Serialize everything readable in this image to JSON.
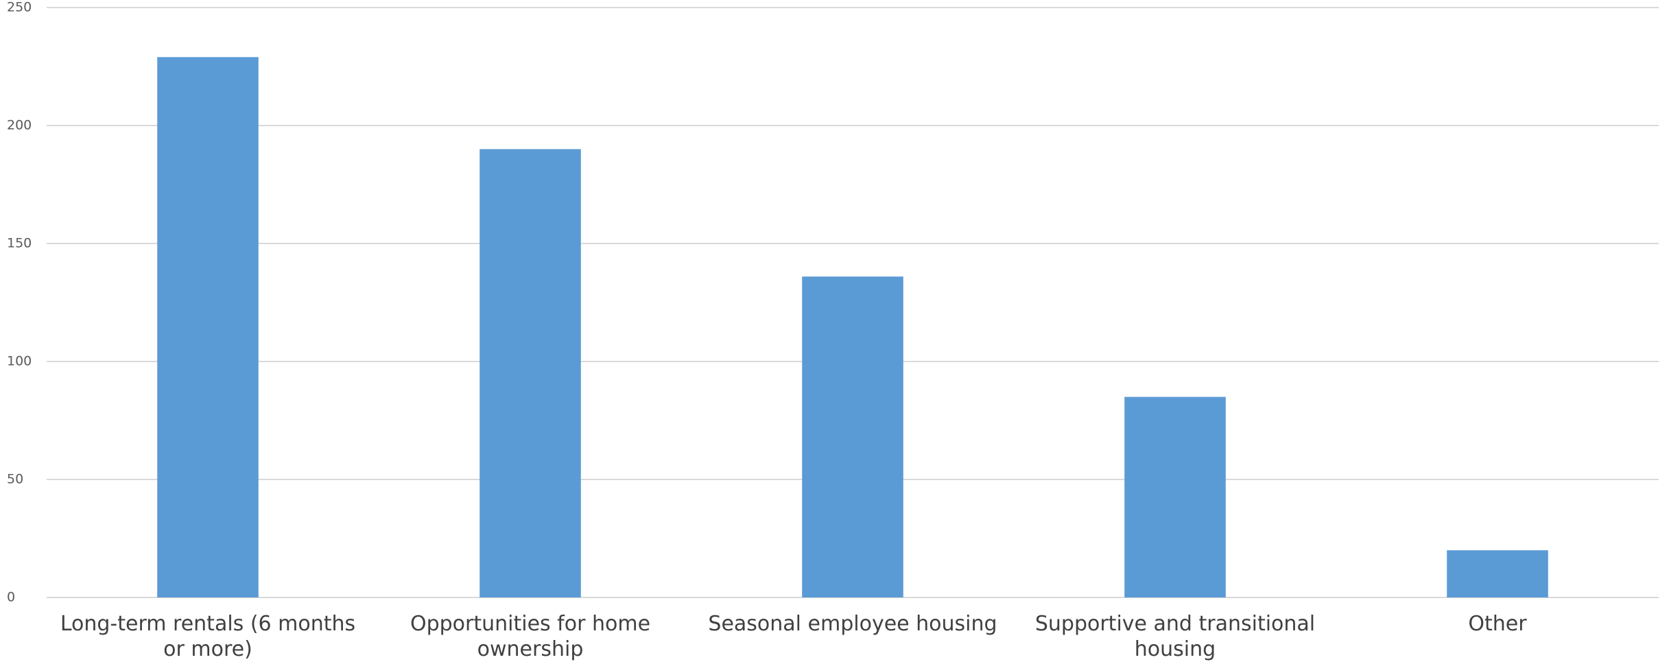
{
  "chart_data": {
    "type": "bar",
    "categories": [
      "Long-term rentals (6 months or more)",
      "Opportunities for home ownership",
      "Seasonal employee housing",
      "Supportive and transitional housing",
      "Other"
    ],
    "values": [
      229,
      190,
      136,
      85,
      20
    ],
    "color": "#5b9bd5",
    "ylim": [
      0,
      250
    ],
    "yticks": [
      0,
      50,
      100,
      150,
      200,
      250
    ],
    "grid": true
  }
}
